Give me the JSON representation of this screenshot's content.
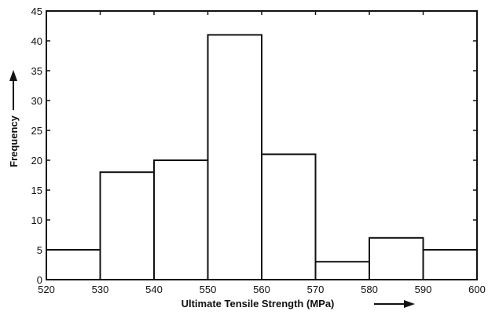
{
  "chart_data": {
    "type": "bar",
    "title": "",
    "xlabel": "Ultimate Tensile Strength (MPa)",
    "ylabel": "Frequency",
    "xlim": [
      520,
      600
    ],
    "ylim": [
      0,
      45
    ],
    "x_ticks": [
      520,
      530,
      540,
      550,
      560,
      570,
      580,
      590,
      600
    ],
    "y_ticks": [
      0,
      5,
      10,
      15,
      20,
      25,
      30,
      35,
      40,
      45
    ],
    "bins": [
      {
        "from": 520,
        "to": 530,
        "value": 5
      },
      {
        "from": 530,
        "to": 540,
        "value": 18
      },
      {
        "from": 540,
        "to": 550,
        "value": 20
      },
      {
        "from": 550,
        "to": 560,
        "value": 41
      },
      {
        "from": 560,
        "to": 570,
        "value": 21
      },
      {
        "from": 570,
        "to": 580,
        "value": 3
      },
      {
        "from": 580,
        "to": 590,
        "value": 7
      },
      {
        "from": 590,
        "to": 600,
        "value": 5
      }
    ],
    "grid": false,
    "bar_fill": "#ffffff",
    "bar_stroke": "#111111"
  }
}
